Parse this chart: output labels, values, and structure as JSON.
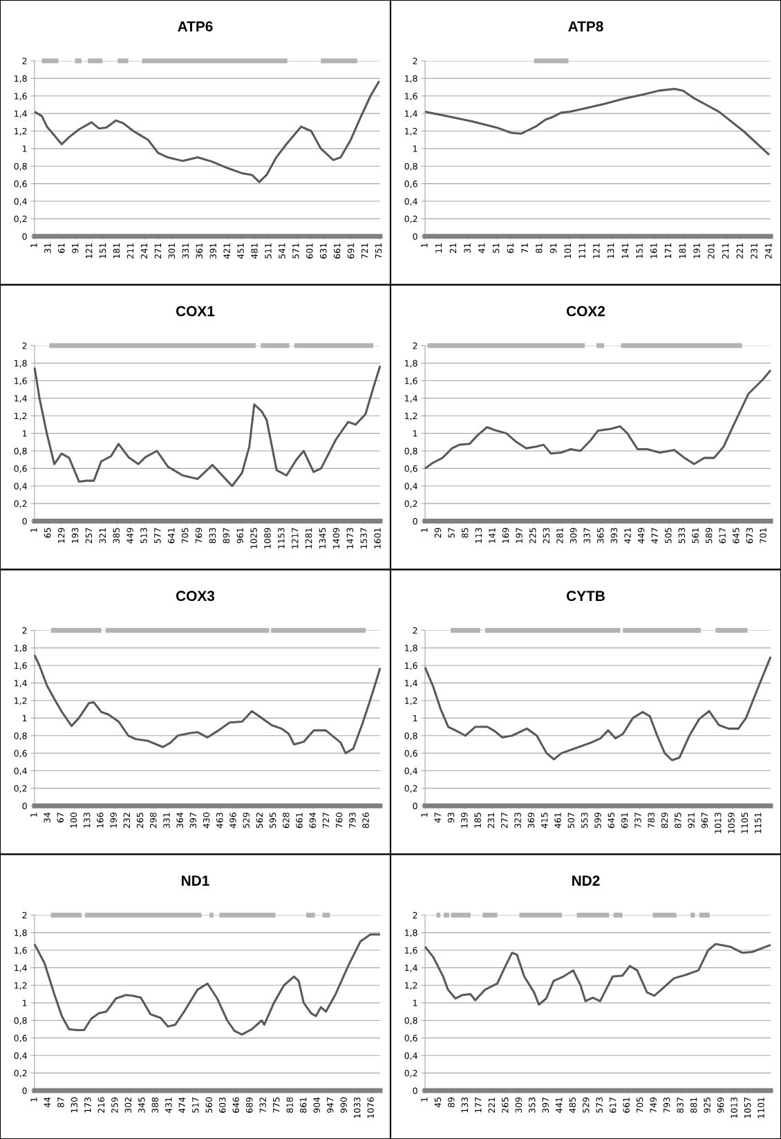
{
  "chart_data": [
    {
      "type": "line",
      "title": "ATP6",
      "xlim": [
        1,
        753
      ],
      "ylim": [
        0,
        2
      ],
      "grid": "y",
      "xticks": [
        1,
        31,
        61,
        91,
        121,
        151,
        181,
        211,
        241,
        271,
        301,
        331,
        361,
        391,
        421,
        451,
        481,
        511,
        541,
        571,
        601,
        631,
        661,
        691,
        721,
        751
      ],
      "yticks": [
        {
          "value": 0,
          "label": "0"
        },
        {
          "value": 0.2,
          "label": "0,2"
        },
        {
          "value": 0.4,
          "label": "0,4"
        },
        {
          "value": 0.6,
          "label": "0,6"
        },
        {
          "value": 0.8,
          "label": "0,8"
        },
        {
          "value": 1,
          "label": "1"
        },
        {
          "value": 1.2,
          "label": "1,2"
        },
        {
          "value": 1.4,
          "label": "1,4"
        },
        {
          "value": 1.6,
          "label": "1,6"
        },
        {
          "value": 1.8,
          "label": "1,8"
        },
        {
          "value": 2,
          "label": "2"
        }
      ],
      "series": [
        {
          "color": "#595959",
          "x": [
            1,
            17,
            28,
            44,
            60,
            76,
            98,
            125,
            141,
            157,
            178,
            194,
            216,
            232,
            248,
            270,
            291,
            323,
            356,
            388,
            420,
            452,
            474,
            490,
            506,
            527,
            549,
            581,
            603,
            624,
            651,
            667,
            689,
            710,
            732,
            751
          ],
          "values": [
            1.42,
            1.37,
            1.25,
            1.15,
            1.05,
            1.13,
            1.22,
            1.3,
            1.23,
            1.24,
            1.32,
            1.29,
            1.2,
            1.15,
            1.1,
            0.95,
            0.9,
            0.86,
            0.9,
            0.85,
            0.78,
            0.72,
            0.7,
            0.62,
            0.7,
            0.9,
            1.05,
            1.25,
            1.2,
            1.0,
            0.87,
            0.9,
            1.1,
            1.35,
            1.6,
            1.77
          ]
        },
        {
          "color": "#b3b3b3",
          "x": [
            17,
            53,
            71,
            89,
            103,
            110,
            117,
            149,
            165,
            182,
            205,
            220,
            235,
            551,
            587,
            624,
            703
          ],
          "values": [
            2,
            2,
            null,
            2,
            2,
            null,
            2,
            2,
            null,
            2,
            2,
            null,
            2,
            2,
            null,
            2,
            2
          ]
        }
      ]
    },
    {
      "type": "line",
      "title": "ATP8",
      "xlim": [
        1,
        242
      ],
      "ylim": [
        0,
        2
      ],
      "grid": "y",
      "xticks": [
        1,
        11,
        21,
        31,
        41,
        51,
        61,
        71,
        81,
        91,
        101,
        111,
        121,
        131,
        141,
        151,
        161,
        171,
        181,
        191,
        201,
        211,
        221,
        231,
        241
      ],
      "yticks": [
        {
          "value": 0,
          "label": "0"
        },
        {
          "value": 0.2,
          "label": "0,2"
        },
        {
          "value": 0.4,
          "label": "0,4"
        },
        {
          "value": 0.6,
          "label": "0,6"
        },
        {
          "value": 0.8,
          "label": "0,8"
        },
        {
          "value": 1,
          "label": "1"
        },
        {
          "value": 1.2,
          "label": "1,2"
        },
        {
          "value": 1.4,
          "label": "1,4"
        },
        {
          "value": 1.6,
          "label": "1,6"
        },
        {
          "value": 1.8,
          "label": "1,8"
        },
        {
          "value": 2,
          "label": "2"
        }
      ],
      "series": [
        {
          "color": "#595959",
          "x": [
            1,
            16.5,
            33.7,
            50.9,
            61,
            68,
            78,
            85,
            90,
            96,
            102,
            113,
            126,
            140,
            154,
            164,
            175,
            181,
            188,
            206,
            223,
            241
          ],
          "values": [
            1.42,
            1.37,
            1.31,
            1.24,
            1.18,
            1.17,
            1.25,
            1.33,
            1.36,
            1.41,
            1.42,
            1.46,
            1.51,
            1.57,
            1.62,
            1.66,
            1.68,
            1.66,
            1.58,
            1.42,
            1.2,
            0.93
          ]
        },
        {
          "color": "#b3b3b3",
          "x": [
            77,
            101
          ],
          "values": [
            2,
            2
          ]
        }
      ]
    },
    {
      "type": "line",
      "title": "COX1",
      "xlim": [
        1,
        1610
      ],
      "ylim": [
        0,
        2
      ],
      "grid": "y",
      "xticks": [
        1,
        65,
        129,
        193,
        257,
        321,
        385,
        449,
        513,
        577,
        641,
        705,
        769,
        833,
        897,
        961,
        1025,
        1089,
        1153,
        1217,
        1281,
        1345,
        1409,
        1473,
        1537,
        1601
      ],
      "yticks": [
        {
          "value": 0,
          "label": "0"
        },
        {
          "value": 0.2,
          "label": "0,2"
        },
        {
          "value": 0.4,
          "label": "0,4"
        },
        {
          "value": 0.6,
          "label": "0,6"
        },
        {
          "value": 0.8,
          "label": "0,8"
        },
        {
          "value": 1,
          "label": "1"
        },
        {
          "value": 1.2,
          "label": "1,2"
        },
        {
          "value": 1.4,
          "label": "1,4"
        },
        {
          "value": 1.6,
          "label": "1,6"
        },
        {
          "value": 1.8,
          "label": "1,8"
        },
        {
          "value": 2,
          "label": "2"
        }
      ],
      "series": [
        {
          "color": "#595959",
          "x": [
            1,
            24,
            58,
            93,
            127,
            162,
            208,
            242,
            277,
            311,
            357,
            392,
            438,
            484,
            518,
            571,
            622,
            691,
            760,
            829,
            898,
            921,
            967,
            1001,
            1024,
            1059,
            1082,
            1128,
            1174,
            1220,
            1254,
            1300,
            1335,
            1404,
            1461,
            1496,
            1542,
            1576,
            1610
          ],
          "values": [
            1.75,
            1.4,
            1.0,
            0.65,
            0.77,
            0.72,
            0.45,
            0.46,
            0.46,
            0.68,
            0.74,
            0.88,
            0.73,
            0.65,
            0.73,
            0.8,
            0.62,
            0.52,
            0.48,
            0.64,
            0.46,
            0.4,
            0.55,
            0.85,
            1.33,
            1.25,
            1.15,
            0.58,
            0.52,
            0.7,
            0.8,
            0.56,
            0.6,
            0.93,
            1.13,
            1.1,
            1.22,
            1.5,
            1.77
          ]
        },
        {
          "color": "#b3b3b3",
          "x": [
            70,
            1031,
            1042,
            1054,
            1187,
            1198,
            1210,
            1578
          ],
          "values": [
            2,
            2,
            null,
            2,
            2,
            null,
            2,
            2
          ]
        }
      ]
    },
    {
      "type": "line",
      "title": "COX2",
      "xlim": [
        1,
        715
      ],
      "ylim": [
        0,
        2
      ],
      "grid": "y",
      "xticks": [
        1,
        29,
        57,
        85,
        113,
        141,
        169,
        197,
        225,
        253,
        281,
        309,
        337,
        365,
        393,
        421,
        449,
        477,
        505,
        533,
        561,
        589,
        617,
        645,
        673,
        701
      ],
      "yticks": [
        {
          "value": 0,
          "label": "0"
        },
        {
          "value": 0.2,
          "label": "0,2"
        },
        {
          "value": 0.4,
          "label": "0,4"
        },
        {
          "value": 0.6,
          "label": "0,6"
        },
        {
          "value": 0.8,
          "label": "0,8"
        },
        {
          "value": 1,
          "label": "1"
        },
        {
          "value": 1.2,
          "label": "1,2"
        },
        {
          "value": 1.4,
          "label": "1,4"
        },
        {
          "value": 1.6,
          "label": "1,6"
        },
        {
          "value": 1.8,
          "label": "1,8"
        },
        {
          "value": 2,
          "label": "2"
        }
      ],
      "series": [
        {
          "color": "#595959",
          "x": [
            1,
            16,
            37,
            57,
            72,
            93,
            108,
            129,
            149,
            169,
            190,
            210,
            231,
            246,
            261,
            282,
            302,
            322,
            343,
            358,
            384,
            404,
            419,
            440,
            460,
            486,
            516,
            537,
            557,
            578,
            598,
            618,
            639,
            669,
            700,
            715
          ],
          "values": [
            0.6,
            0.66,
            0.72,
            0.83,
            0.87,
            0.88,
            0.97,
            1.07,
            1.03,
            1.0,
            0.9,
            0.83,
            0.85,
            0.87,
            0.77,
            0.78,
            0.82,
            0.8,
            0.92,
            1.03,
            1.05,
            1.08,
            1.0,
            0.82,
            0.82,
            0.78,
            0.81,
            0.72,
            0.65,
            0.72,
            0.72,
            0.85,
            1.1,
            1.45,
            1.62,
            1.72
          ]
        },
        {
          "color": "#b3b3b3",
          "x": [
            6,
            331,
            343,
            355,
            371,
            388,
            406,
            656
          ],
          "values": [
            2,
            2,
            null,
            2,
            2,
            null,
            2,
            2
          ]
        }
      ]
    },
    {
      "type": "line",
      "title": "COX3",
      "xlim": [
        1,
        860
      ],
      "ylim": [
        0,
        2
      ],
      "grid": "y",
      "xticks": [
        1,
        34,
        67,
        100,
        133,
        166,
        199,
        232,
        265,
        298,
        331,
        364,
        397,
        430,
        463,
        496,
        529,
        562,
        595,
        628,
        661,
        694,
        727,
        760,
        793,
        826
      ],
      "yticks": [
        {
          "value": 0,
          "label": "0"
        },
        {
          "value": 0.2,
          "label": "0,2"
        },
        {
          "value": 0.4,
          "label": "0,4"
        },
        {
          "value": 0.6,
          "label": "0,6"
        },
        {
          "value": 0.8,
          "label": "0,8"
        },
        {
          "value": 1,
          "label": "1"
        },
        {
          "value": 1.2,
          "label": "1,2"
        },
        {
          "value": 1.4,
          "label": "1,4"
        },
        {
          "value": 1.6,
          "label": "1,6"
        },
        {
          "value": 1.8,
          "label": "1,8"
        },
        {
          "value": 2,
          "label": "2"
        }
      ],
      "series": [
        {
          "color": "#595959",
          "x": [
            1,
            13,
            32,
            50,
            69,
            93,
            111,
            136,
            148,
            167,
            185,
            210,
            234,
            253,
            283,
            320,
            339,
            357,
            388,
            406,
            431,
            455,
            486,
            517,
            541,
            566,
            590,
            615,
            633,
            646,
            670,
            695,
            725,
            762,
            774,
            793,
            817,
            842,
            860
          ],
          "values": [
            1.72,
            1.6,
            1.37,
            1.22,
            1.07,
            0.91,
            1.0,
            1.17,
            1.18,
            1.07,
            1.04,
            0.96,
            0.8,
            0.76,
            0.74,
            0.67,
            0.72,
            0.8,
            0.83,
            0.84,
            0.78,
            0.85,
            0.95,
            0.96,
            1.08,
            1.0,
            0.92,
            0.88,
            0.82,
            0.7,
            0.73,
            0.86,
            0.86,
            0.72,
            0.6,
            0.65,
            0.95,
            1.3,
            1.57
          ]
        },
        {
          "color": "#b3b3b3",
          "x": [
            42,
            167,
            172,
            178,
            584,
            586,
            589,
            824
          ],
          "values": [
            2,
            2,
            null,
            2,
            2,
            null,
            2,
            2
          ]
        }
      ]
    },
    {
      "type": "line",
      "title": "CYTB",
      "xlim": [
        1,
        1192
      ],
      "ylim": [
        0,
        2
      ],
      "grid": "y",
      "xticks": [
        1,
        47,
        93,
        139,
        185,
        231,
        277,
        323,
        369,
        415,
        461,
        507,
        553,
        599,
        645,
        691,
        737,
        783,
        829,
        875,
        921,
        967,
        1013,
        1059,
        1105,
        1151
      ],
      "yticks": [
        {
          "value": 0,
          "label": "0"
        },
        {
          "value": 0.2,
          "label": "0,2"
        },
        {
          "value": 0.4,
          "label": "0,4"
        },
        {
          "value": 0.6,
          "label": "0,6"
        },
        {
          "value": 0.8,
          "label": "0,8"
        },
        {
          "value": 1,
          "label": "1"
        },
        {
          "value": 1.2,
          "label": "1,2"
        },
        {
          "value": 1.4,
          "label": "1,4"
        },
        {
          "value": 1.6,
          "label": "1,6"
        },
        {
          "value": 1.8,
          "label": "1,8"
        },
        {
          "value": 2,
          "label": "2"
        }
      ],
      "series": [
        {
          "color": "#595959",
          "x": [
            1,
            30,
            55,
            81,
            106,
            140,
            174,
            216,
            242,
            267,
            301,
            352,
            386,
            420,
            445,
            471,
            522,
            573,
            606,
            632,
            657,
            683,
            717,
            751,
            776,
            801,
            827,
            852,
            878,
            912,
            946,
            980,
            1014,
            1047,
            1081,
            1107,
            1149,
            1192
          ],
          "values": [
            1.58,
            1.35,
            1.1,
            0.9,
            0.86,
            0.8,
            0.9,
            0.9,
            0.85,
            0.78,
            0.8,
            0.88,
            0.8,
            0.6,
            0.53,
            0.6,
            0.66,
            0.72,
            0.77,
            0.86,
            0.77,
            0.82,
            1.0,
            1.07,
            1.02,
            0.8,
            0.6,
            0.52,
            0.55,
            0.8,
            0.99,
            1.08,
            0.92,
            0.88,
            0.88,
            1.0,
            1.35,
            1.7
          ]
        },
        {
          "color": "#b3b3b3",
          "x": [
            89,
            191,
            200,
            208,
            674,
            678,
            683,
            951,
            976,
            1002,
            1112
          ],
          "values": [
            2,
            2,
            null,
            2,
            2,
            null,
            2,
            2,
            null,
            2,
            2
          ]
        }
      ]
    },
    {
      "type": "line",
      "title": "ND1",
      "xlim": [
        1,
        1104
      ],
      "ylim": [
        0,
        2
      ],
      "grid": "y",
      "xticks": [
        1,
        44,
        87,
        130,
        173,
        216,
        259,
        302,
        345,
        388,
        431,
        474,
        517,
        560,
        603,
        646,
        689,
        732,
        775,
        818,
        861,
        904,
        947,
        990,
        1033,
        1076
      ],
      "yticks": [
        {
          "value": 0,
          "label": "0"
        },
        {
          "value": 0.2,
          "label": "0,2"
        },
        {
          "value": 0.4,
          "label": "0,4"
        },
        {
          "value": 0.6,
          "label": "0,6"
        },
        {
          "value": 0.8,
          "label": "0,8"
        },
        {
          "value": 1,
          "label": "1"
        },
        {
          "value": 1.2,
          "label": "1,2"
        },
        {
          "value": 1.4,
          "label": "1,4"
        },
        {
          "value": 1.6,
          "label": "1,6"
        },
        {
          "value": 1.8,
          "label": "1,8"
        },
        {
          "value": 2,
          "label": "2"
        }
      ],
      "series": [
        {
          "color": "#595959",
          "x": [
            1,
            33,
            64,
            88,
            111,
            135,
            159,
            182,
            206,
            230,
            261,
            293,
            316,
            340,
            371,
            403,
            427,
            450,
            482,
            521,
            553,
            584,
            616,
            639,
            663,
            695,
            726,
            734,
            765,
            797,
            829,
            844,
            860,
            884,
            899,
            915,
            931,
            962,
            1002,
            1041,
            1073,
            1104
          ],
          "values": [
            1.67,
            1.45,
            1.1,
            0.85,
            0.7,
            0.69,
            0.69,
            0.82,
            0.88,
            0.9,
            1.05,
            1.09,
            1.08,
            1.06,
            0.87,
            0.83,
            0.73,
            0.75,
            0.92,
            1.15,
            1.22,
            1.05,
            0.8,
            0.68,
            0.64,
            0.7,
            0.8,
            0.75,
            1.0,
            1.2,
            1.3,
            1.25,
            1.0,
            0.88,
            0.85,
            0.95,
            0.9,
            1.1,
            1.42,
            1.7,
            1.78,
            1.78
          ]
        },
        {
          "color": "#b3b3b3",
          "x": [
            53,
            151,
            156,
            162,
            534,
            546,
            559,
            572,
            581,
            591,
            770,
            819,
            868,
            896,
            908,
            920,
            944
          ],
          "values": [
            2,
            2,
            null,
            2,
            2,
            null,
            2,
            2,
            null,
            2,
            2,
            null,
            2,
            2,
            null,
            2,
            2
          ]
        }
      ]
    },
    {
      "type": "line",
      "title": "ND2",
      "xlim": [
        1,
        1130
      ],
      "ylim": [
        0,
        2
      ],
      "grid": "y",
      "xticks": [
        1,
        45,
        89,
        133,
        177,
        221,
        265,
        309,
        353,
        397,
        441,
        485,
        529,
        573,
        617,
        661,
        705,
        749,
        793,
        837,
        881,
        925,
        969,
        1013,
        1057,
        1101
      ],
      "yticks": [
        {
          "value": 0,
          "label": "0"
        },
        {
          "value": 0.2,
          "label": "0,2"
        },
        {
          "value": 0.4,
          "label": "0,4"
        },
        {
          "value": 0.6,
          "label": "0,6"
        },
        {
          "value": 0.8,
          "label": "0,8"
        },
        {
          "value": 1,
          "label": "1"
        },
        {
          "value": 1.2,
          "label": "1,2"
        },
        {
          "value": 1.4,
          "label": "1,4"
        },
        {
          "value": 1.6,
          "label": "1,6"
        },
        {
          "value": 1.8,
          "label": "1,8"
        },
        {
          "value": 2,
          "label": "2"
        }
      ],
      "series": [
        {
          "color": "#595959",
          "x": [
            1,
            28,
            60,
            76,
            100,
            124,
            149,
            165,
            197,
            237,
            261,
            285,
            301,
            325,
            357,
            373,
            397,
            421,
            453,
            485,
            509,
            525,
            549,
            573,
            614,
            646,
            670,
            694,
            726,
            750,
            782,
            814,
            854,
            894,
            926,
            950,
            998,
            1038,
            1070,
            1130
          ],
          "values": [
            1.64,
            1.52,
            1.3,
            1.15,
            1.05,
            1.09,
            1.1,
            1.03,
            1.15,
            1.22,
            1.4,
            1.57,
            1.55,
            1.3,
            1.12,
            0.98,
            1.05,
            1.25,
            1.3,
            1.37,
            1.2,
            1.02,
            1.06,
            1.02,
            1.3,
            1.31,
            1.42,
            1.37,
            1.12,
            1.08,
            1.18,
            1.28,
            1.32,
            1.37,
            1.6,
            1.67,
            1.64,
            1.57,
            1.58,
            1.66
          ]
        },
        {
          "color": "#b3b3b3",
          "x": [
            38,
            51,
            56,
            62,
            80,
            83,
            86,
            150,
            170,
            189,
            237,
            273,
            309,
            448,
            472,
            497,
            602,
            610,
            617,
            646,
            696,
            745,
            822,
            845,
            868,
            883,
            890,
            897,
            931
          ],
          "values": [
            2,
            2,
            null,
            2,
            2,
            null,
            2,
            2,
            null,
            2,
            2,
            null,
            2,
            2,
            null,
            2,
            2,
            null,
            2,
            2,
            null,
            2,
            2,
            null,
            2,
            2,
            null,
            2,
            2
          ]
        }
      ]
    }
  ]
}
